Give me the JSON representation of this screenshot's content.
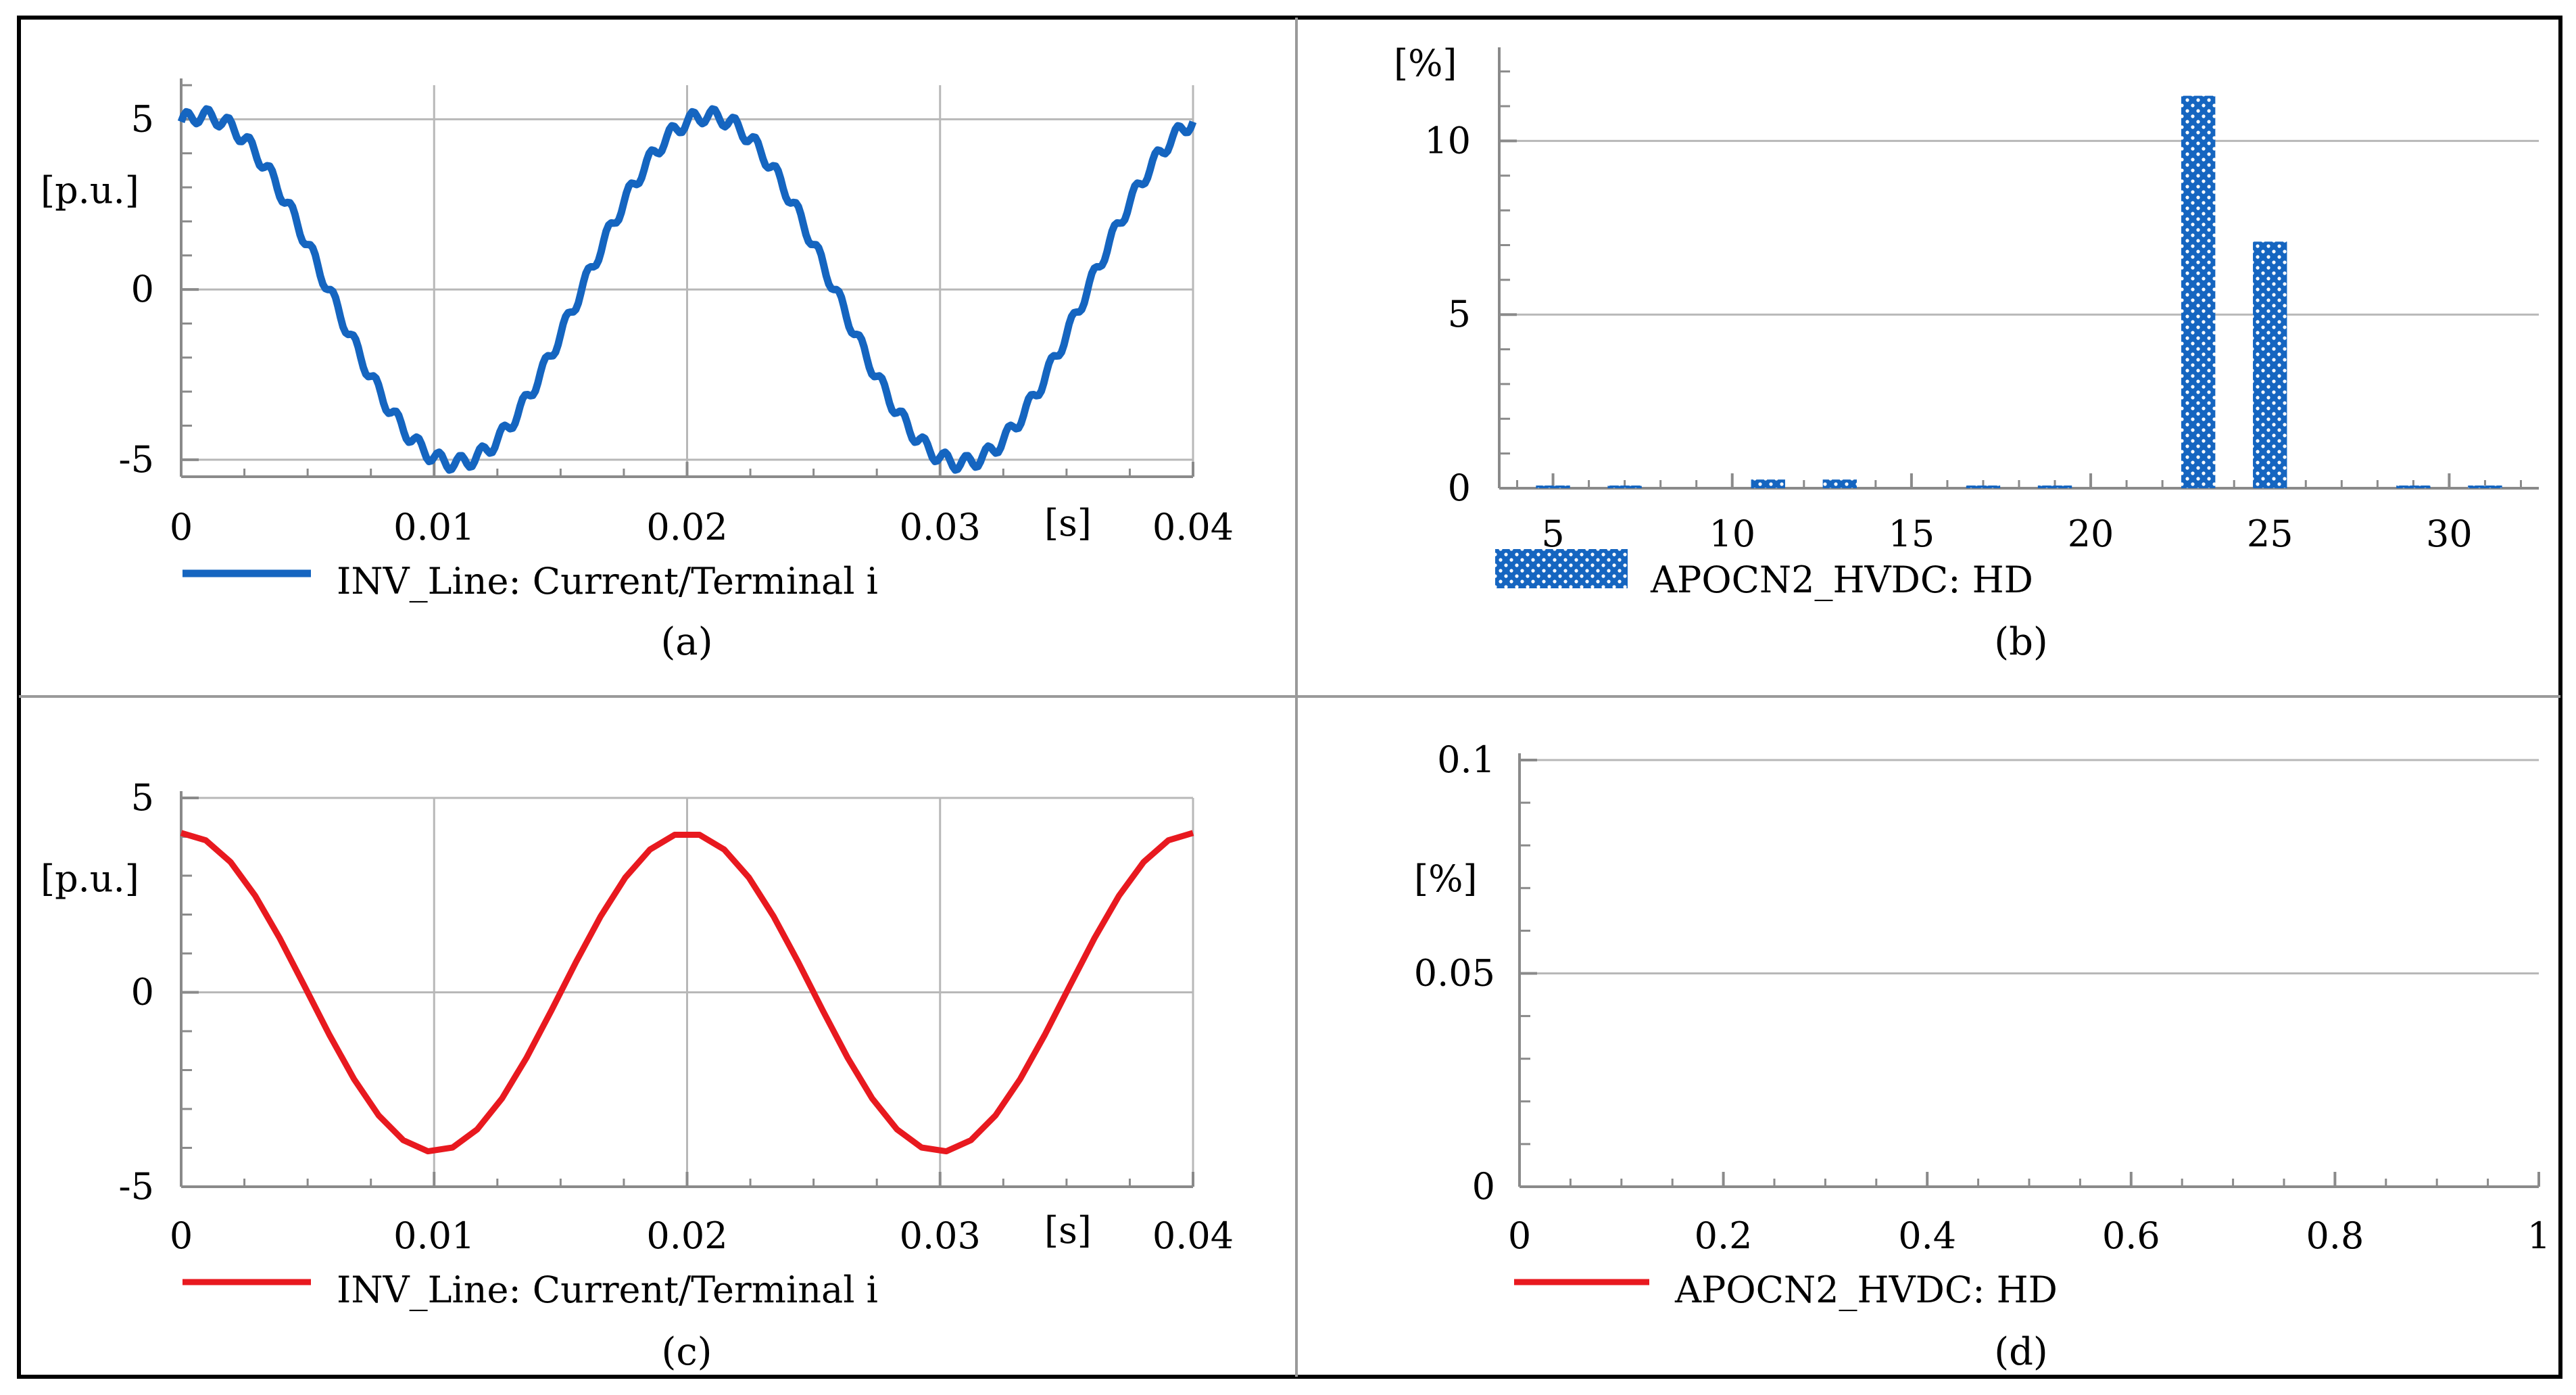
{
  "colors": {
    "blue": "#1565c0",
    "red": "#e8191f"
  },
  "chart_data": [
    {
      "id": "a",
      "type": "line",
      "caption": "(a)",
      "xlim": [
        0,
        0.04
      ],
      "ylim": [
        -5.5,
        6
      ],
      "xticks": [
        0,
        0.01,
        0.02,
        0.03,
        0.04
      ],
      "xtick_labels": [
        "0",
        "0.01",
        "0.02",
        "0.03",
        "0.04"
      ],
      "yticks": [
        -5,
        0,
        5
      ],
      "ytick_labels": [
        "-5",
        "0",
        "5"
      ],
      "xunit": "[s]",
      "yunit": "[p.u.]",
      "legend": "INV_Line: Current/Terminal i",
      "color": "#1565c0",
      "series": [
        {
          "name": "INV_Line: Current/Terminal i",
          "amplitude": 5.1,
          "phase_deg": 75,
          "period": 0.02,
          "ripple": 0.22,
          "ripple_harmonic": 24,
          "samples": 400
        }
      ]
    },
    {
      "id": "b",
      "type": "bar",
      "caption": "(b)",
      "xlim": [
        3.5,
        32.5
      ],
      "ylim": [
        0,
        12.5
      ],
      "xticks": [
        5,
        10,
        15,
        20,
        25,
        30
      ],
      "xtick_labels": [
        "5",
        "10",
        "15",
        "20",
        "25",
        "30"
      ],
      "yticks": [
        0,
        5,
        10
      ],
      "ytick_labels": [
        "0",
        "5",
        "10"
      ],
      "yunit": "[%]",
      "legend": "APOCN2_HVDC: HD",
      "color": "#1565c0",
      "categories": [
        5,
        7,
        11,
        13,
        17,
        19,
        23,
        25,
        29,
        31
      ],
      "values": [
        0.05,
        0.05,
        0.25,
        0.25,
        0.03,
        0.03,
        11.3,
        7.1,
        0.05,
        0.05
      ]
    },
    {
      "id": "c",
      "type": "line",
      "caption": "(c)",
      "xlim": [
        0,
        0.04
      ],
      "ylim": [
        -5,
        5
      ],
      "xticks": [
        0,
        0.01,
        0.02,
        0.03,
        0.04
      ],
      "xtick_labels": [
        "0",
        "0.01",
        "0.02",
        "0.03",
        "0.04"
      ],
      "yticks": [
        -5,
        0,
        5
      ],
      "ytick_labels": [
        "-5",
        "0",
        "5"
      ],
      "xunit": "[s]",
      "yunit": "[p.u.]",
      "legend": "INV_Line: Current/Terminal i",
      "color": "#e8191f",
      "series": [
        {
          "name": "INV_Line: Current/Terminal i",
          "amplitude": 4.1,
          "phase_deg": 90,
          "period": 0.02,
          "ripple": 0,
          "ripple_harmonic": 0,
          "samples": 41
        }
      ]
    },
    {
      "id": "d",
      "type": "line",
      "caption": "(d)",
      "xlim": [
        0,
        1
      ],
      "ylim": [
        0,
        0.1
      ],
      "xticks": [
        0,
        0.2,
        0.4,
        0.6,
        0.8,
        1
      ],
      "xtick_labels": [
        "0",
        "0.2",
        "0.4",
        "0.6",
        "0.8",
        "1"
      ],
      "yticks": [
        0,
        0.05,
        0.1
      ],
      "ytick_labels": [
        "0",
        "0.05",
        "0.1"
      ],
      "yunit": "[%]",
      "legend": "APOCN2_HVDC: HD",
      "color": "#e8191f",
      "series": []
    }
  ]
}
